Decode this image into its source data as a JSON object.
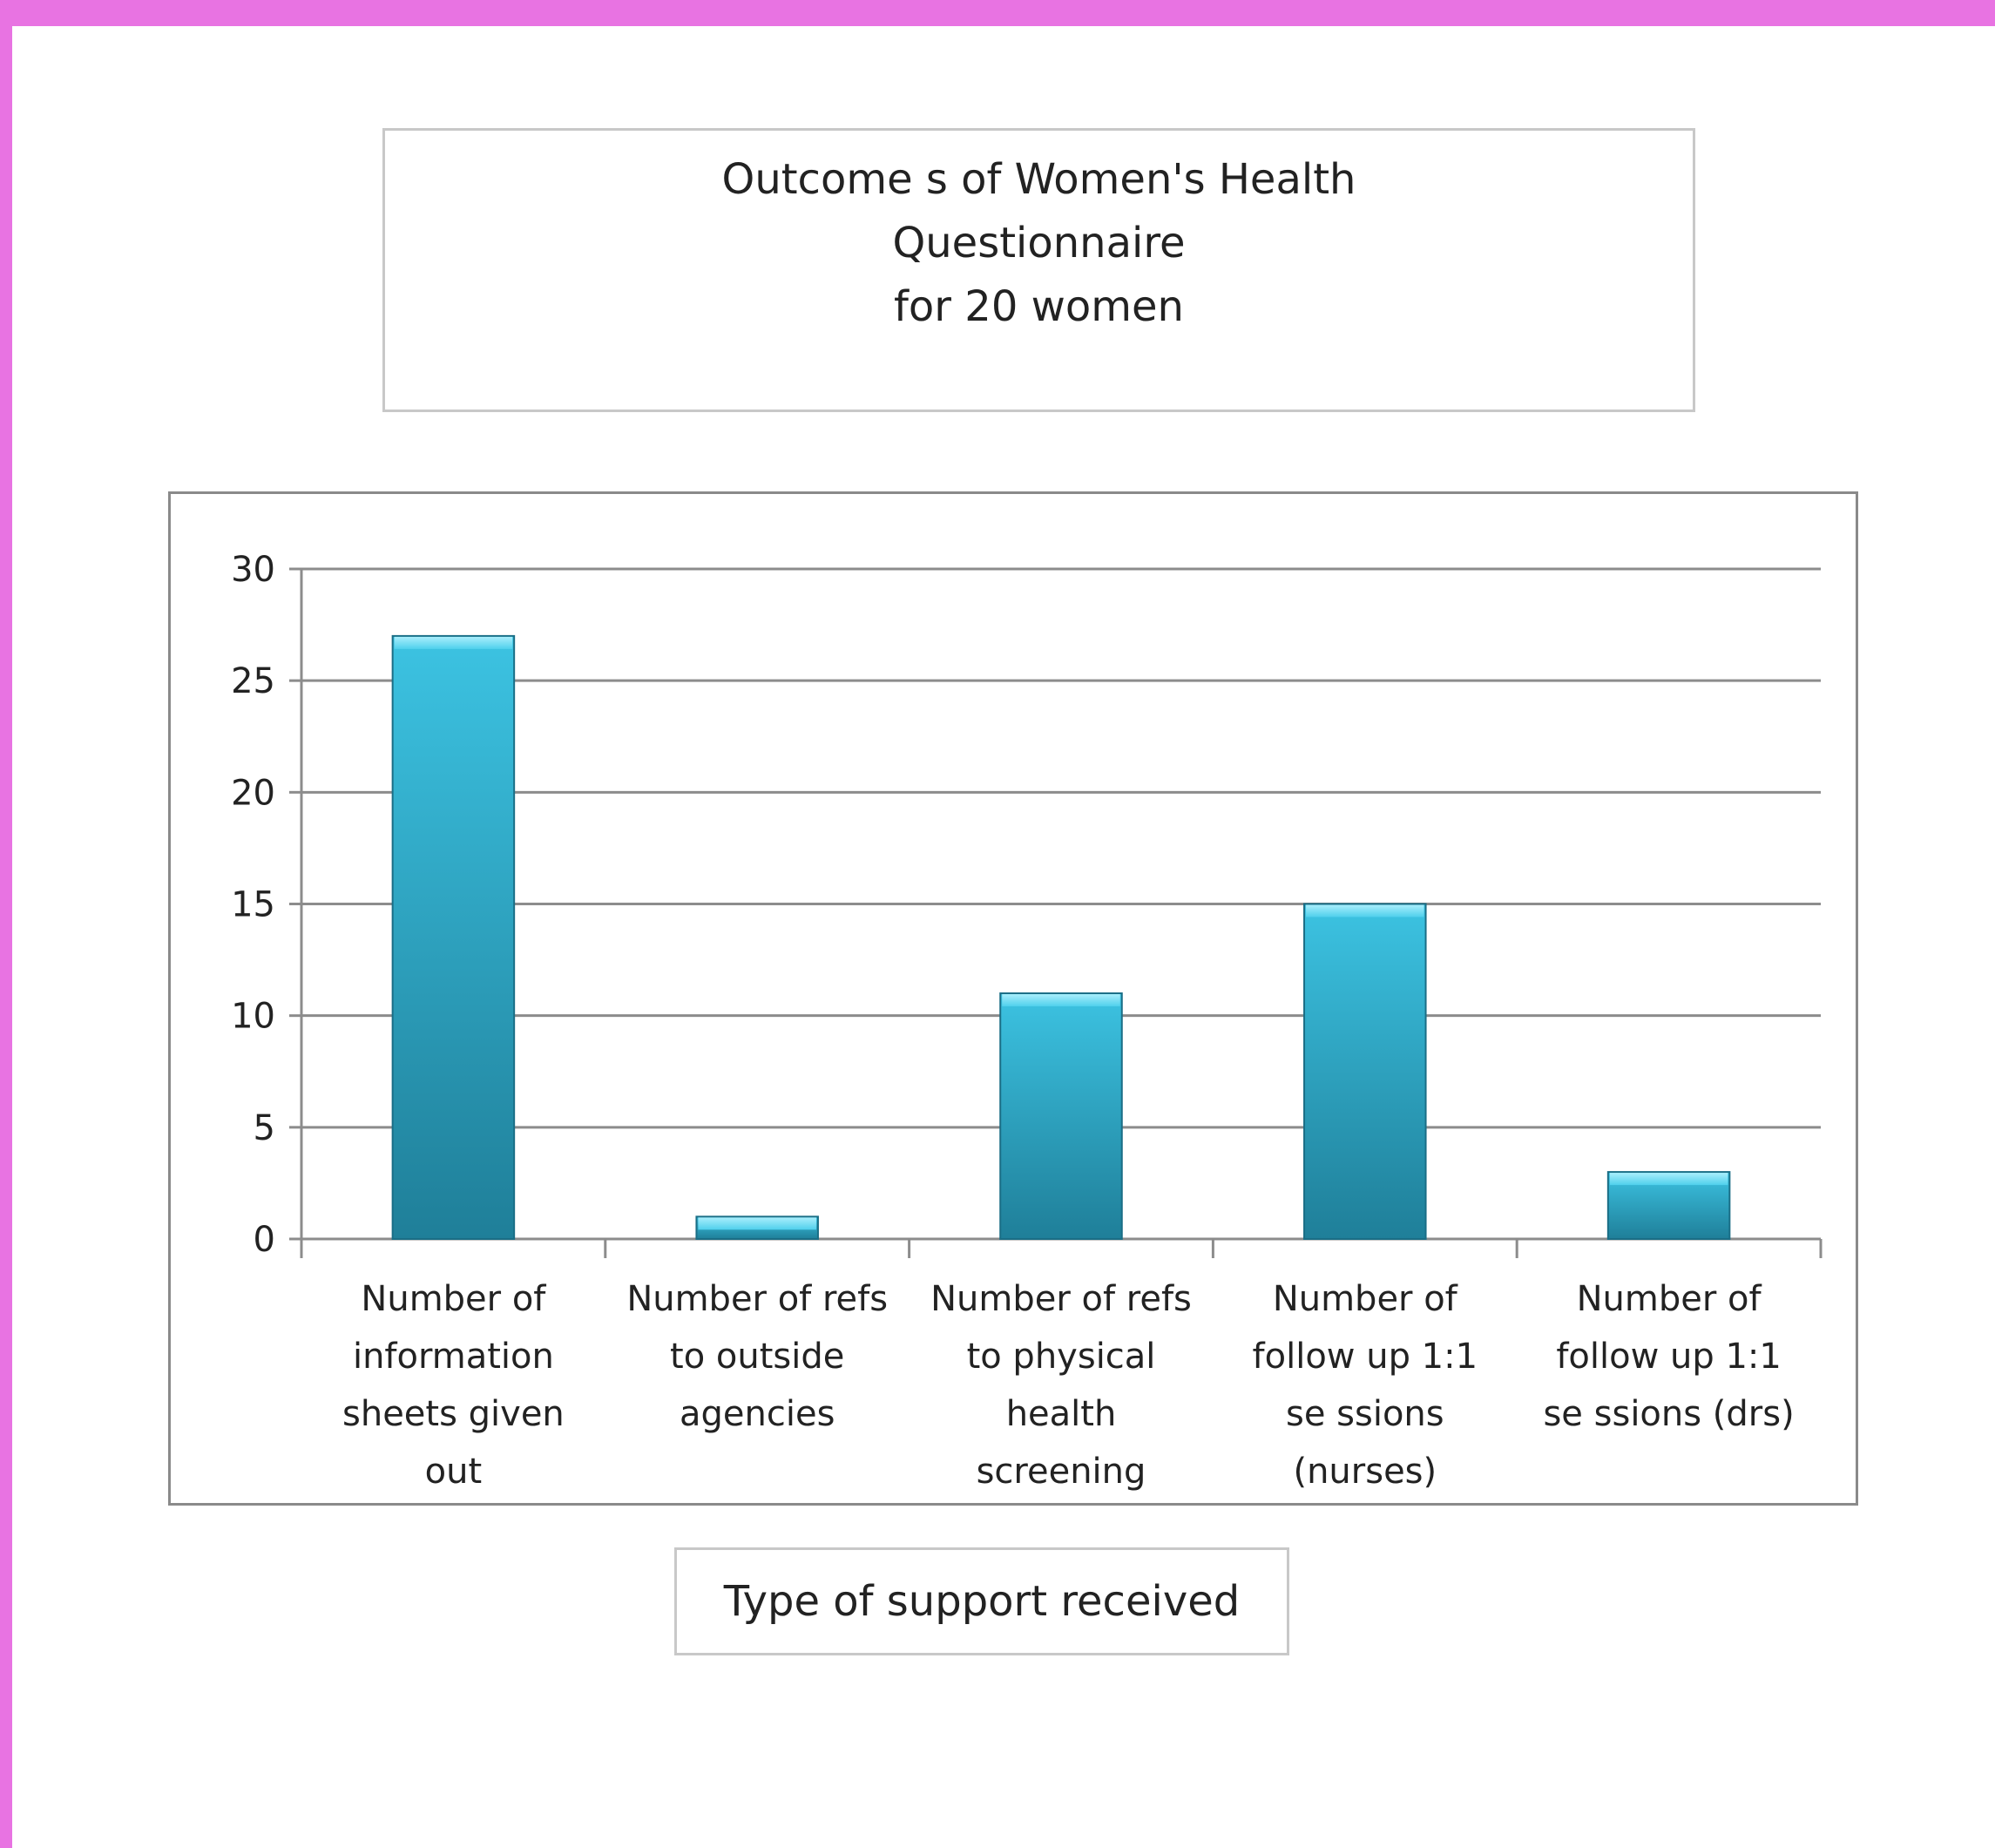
{
  "chart_data": {
    "type": "bar",
    "title_lines": [
      "Outcome s of Women's Health",
      "Questionnaire",
      "for 20 women"
    ],
    "xlabel": "Type of support received",
    "ylabel": "",
    "ylim": [
      0,
      30
    ],
    "yticks": [
      0,
      5,
      10,
      15,
      20,
      25,
      30
    ],
    "grid": true,
    "categories": [
      [
        "Number of",
        "information",
        "sheets given",
        "out"
      ],
      [
        "Number of refs",
        "to outside",
        "agencies"
      ],
      [
        "Number of refs",
        "to physical",
        "health",
        "screening"
      ],
      [
        "Number of",
        "follow up 1:1",
        "se ssions",
        "(nurses)"
      ],
      [
        "Number of",
        "follow up 1:1",
        "se ssions (drs)"
      ]
    ],
    "values": [
      27,
      1,
      11,
      15,
      3
    ],
    "bar_color": "#2aa5c6"
  }
}
